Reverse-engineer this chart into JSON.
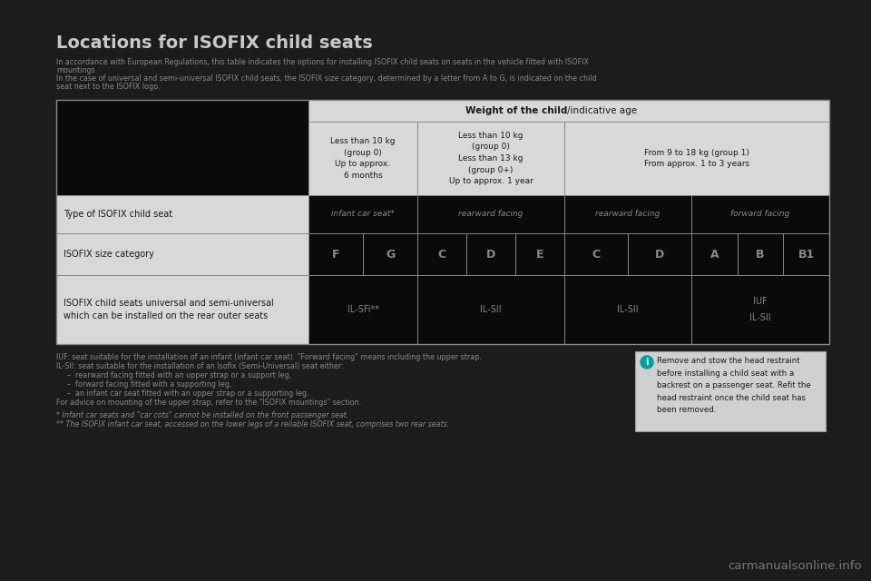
{
  "bg_color": "#1c1c1c",
  "title": "Locations for ISOFIX child seats",
  "subtitle_line1": "In accordance with European Regulations, this table indicates the options for installing ISOFIX child seats on seats in the vehicle fitted with ISOFIX",
  "subtitle_line2": "mountings.",
  "subtitle_line3": "In the case of universal and semi-universal ISOFIX child seats, the ISOFIX size category, determined by a letter from A to G, is indicated on the child",
  "subtitle_line4": "seat next to the ISOFIX logo.",
  "col_header": "Weight of the child/indicative age",
  "col1_header": "Less than 10 kg\n(group 0)\nUp to approx.\n6 months",
  "col2_header": "Less than 10 kg\n(group 0)\nLess than 13 kg\n(group 0+)\nUp to approx. 1 year",
  "col3_header": "From 9 to 18 kg (group 1)\nFrom approx. 1 to 3 years",
  "row1_label": "Type of ISOFIX child seat",
  "row1_col1": "infant car seat*",
  "row1_col2": "rearward facing",
  "row1_col3": "rearward facing",
  "row1_col4": "forward facing",
  "row2_label": "ISOFIX size category",
  "row2_sizes_col1": [
    "F",
    "G"
  ],
  "row2_sizes_col2": [
    "C",
    "D",
    "E"
  ],
  "row2_sizes_col3": [
    "C",
    "D"
  ],
  "row2_sizes_col4": [
    "A",
    "B",
    "B1"
  ],
  "row3_label": "ISOFIX child seats universal and semi-universal\nwhich can be installed on the rear outer seats",
  "row3_col1": "IL-SFi**",
  "row3_col2": "IL-SII",
  "row3_col3": "IL-SII",
  "row3_col4_line1": "IUF",
  "row3_col4_line2": "IL-SII",
  "footnote1": "IUF: seat suitable for the installation of an infant (infant car seat). \"Forward facing\" means including the upper strap.",
  "footnote2": "IL-SII: seat suitable for the installation of an Isofix (Semi-Universal) seat either:",
  "bullet1": "rearward facing fitted with an upper strap or a support leg,",
  "bullet2": "forward facing fitted with a supporting leg,",
  "bullet3": "an infant car seat fitted with an upper strap or a supporting leg.",
  "footnote3": "For advice on mounting of the upper strap, refer to the \"ISOFIX mountings\" section.",
  "footnote4": "* Infant car seats and \"car cots\" cannot be installed on the front passenger seat.",
  "footnote5": "** The ISOFIX infant car seat, accessed on the lower legs of a reliable ISOFIX seat, comprises two rear seats.",
  "info_box": "Remove and stow the head restraint\nbefore installing a child seat with a\nbackrest on a passenger seat. Refit the\nhead restraint once the child seat has\nbeen removed.",
  "watermark": "carmanualsonline.info",
  "cell_dark": "#0a0a0a",
  "cell_light": "#d8d8d8",
  "border_color": "#888888",
  "title_color": "#c8c8c8",
  "subtitle_color": "#888888",
  "header_text_color": "#1a1a1a",
  "cell_text_color": "#888888",
  "label_text_color": "#c0c0c0",
  "info_bg": "#d0d0d0",
  "info_text_color": "#1a1a1a"
}
